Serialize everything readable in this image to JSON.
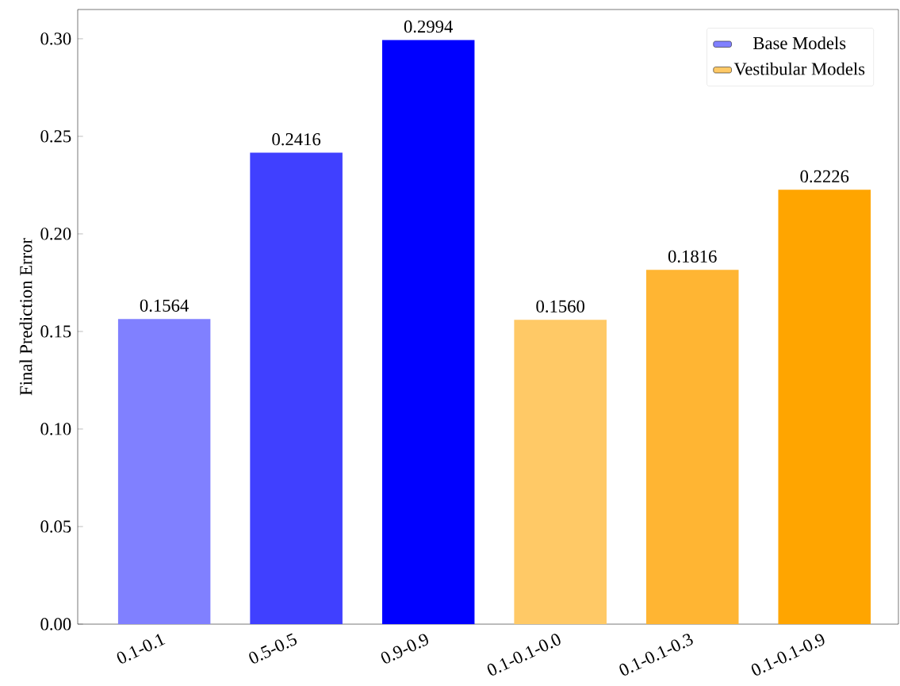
{
  "chart_data": {
    "type": "bar",
    "ylabel": "Final Prediction Error",
    "categories": [
      "0.1-0.1",
      "0.5-0.5",
      "0.9-0.9",
      "0.1-0.1-0.0",
      "0.1-0.1-0.3",
      "0.1-0.1-0.9"
    ],
    "series": [
      {
        "name": "Base Models",
        "color": "#8080ff",
        "colors": [
          "#8080ff",
          "#4040ff",
          "#0000ff",
          null,
          null,
          null
        ],
        "values": [
          0.1564,
          0.2416,
          0.2994,
          null,
          null,
          null
        ],
        "value_labels": [
          "0.1564",
          "0.2416",
          "0.2994",
          null,
          null,
          null
        ]
      },
      {
        "name": "Vestibular Models",
        "color": "#ffc966",
        "colors": [
          null,
          null,
          null,
          "#ffc966",
          "#ffb533",
          "#ffa500"
        ],
        "values": [
          null,
          null,
          null,
          0.156,
          0.1816,
          0.2226
        ],
        "value_labels": [
          null,
          null,
          null,
          "0.1560",
          "0.1816",
          "0.2226"
        ]
      }
    ],
    "ylim": [
      0,
      0.315
    ],
    "yticks": [
      {
        "value": 0,
        "label": "0.00"
      },
      {
        "value": 0.05,
        "label": "0.05"
      },
      {
        "value": 0.1,
        "label": "0.10"
      },
      {
        "value": 0.15,
        "label": "0.15"
      },
      {
        "value": 0.2,
        "label": "0.20"
      },
      {
        "value": 0.25,
        "label": "0.25"
      },
      {
        "value": 0.3,
        "label": "0.30"
      }
    ],
    "grid": false,
    "legend": "top right"
  }
}
